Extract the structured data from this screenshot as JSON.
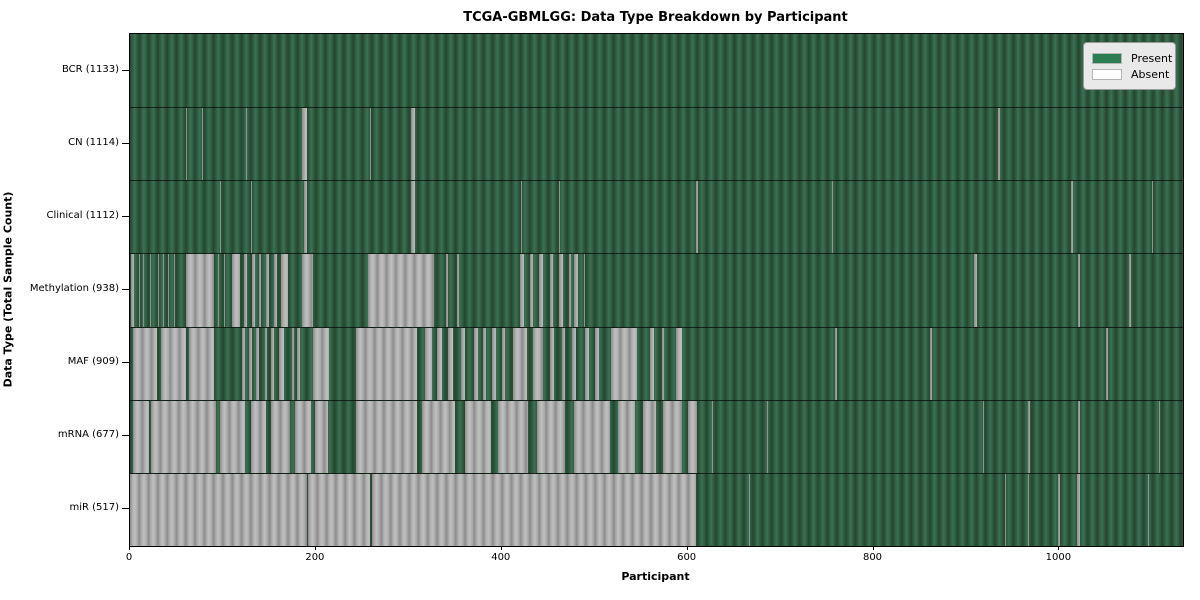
{
  "chart_data": {
    "type": "heatmap",
    "title": "TCGA-GBMLGG: Data Type Breakdown by Participant",
    "xlabel": "Participant",
    "ylabel": "Data Type (Total Sample Count)",
    "x_max": 1133,
    "x_ticks": [
      0,
      200,
      400,
      600,
      800,
      1000
    ],
    "grid": false,
    "legend_position": "upper right",
    "legend": [
      {
        "label": "Present",
        "color": "#2e7d52"
      },
      {
        "label": "Absent",
        "color": "#ffffff"
      }
    ],
    "present_color": "#2e7d52",
    "absent_color": "#aaaaaa",
    "rows": [
      {
        "label": "BCR (1133)",
        "name": "BCR",
        "total_samples": 1133,
        "absent_intervals": []
      },
      {
        "label": "CN (1114)",
        "name": "CN",
        "total_samples": 1114,
        "absent_intervals": [
          [
            60,
            61
          ],
          [
            78,
            79
          ],
          [
            106,
            107
          ],
          [
            125,
            126
          ],
          [
            185,
            191
          ],
          [
            258,
            259
          ],
          [
            302,
            307
          ],
          [
            516,
            517
          ],
          [
            934,
            936
          ]
        ]
      },
      {
        "label": "Clinical (1112)",
        "name": "Clinical",
        "total_samples": 1112,
        "absent_intervals": [
          [
            97,
            98
          ],
          [
            130,
            131
          ],
          [
            187,
            191
          ],
          [
            302,
            307
          ],
          [
            421,
            422
          ],
          [
            462,
            463
          ],
          [
            516,
            517
          ],
          [
            609,
            611
          ],
          [
            755,
            756
          ],
          [
            1013,
            1015
          ],
          [
            1100,
            1101
          ]
        ]
      },
      {
        "label": "Methylation (938)",
        "name": "Methylation",
        "total_samples": 938,
        "absent_intervals": [
          [
            1,
            4
          ],
          [
            10,
            11
          ],
          [
            14,
            15
          ],
          [
            22,
            23
          ],
          [
            30,
            31
          ],
          [
            36,
            37
          ],
          [
            41,
            42
          ],
          [
            47,
            48
          ],
          [
            60,
            90
          ],
          [
            95,
            96
          ],
          [
            101,
            102
          ],
          [
            110,
            118
          ],
          [
            123,
            126
          ],
          [
            131,
            134
          ],
          [
            139,
            141
          ],
          [
            146,
            150
          ],
          [
            155,
            158
          ],
          [
            163,
            170
          ],
          [
            185,
            197
          ],
          [
            256,
            327
          ],
          [
            340,
            342
          ],
          [
            352,
            354
          ],
          [
            420,
            424
          ],
          [
            430,
            434
          ],
          [
            440,
            444
          ],
          [
            452,
            455
          ],
          [
            462,
            466
          ],
          [
            472,
            474
          ],
          [
            478,
            482
          ],
          [
            488,
            490
          ],
          [
            908,
            911
          ],
          [
            1020,
            1022
          ],
          [
            1075,
            1077
          ]
        ]
      },
      {
        "label": "MAF (909)",
        "name": "MAF",
        "total_samples": 909,
        "absent_intervals": [
          [
            3,
            29
          ],
          [
            33,
            60
          ],
          [
            64,
            90
          ],
          [
            120,
            124
          ],
          [
            128,
            131
          ],
          [
            136,
            139
          ],
          [
            145,
            147
          ],
          [
            152,
            155
          ],
          [
            160,
            166
          ],
          [
            174,
            176
          ],
          [
            180,
            183
          ],
          [
            197,
            214
          ],
          [
            243,
            309
          ],
          [
            317,
            325
          ],
          [
            330,
            336
          ],
          [
            342,
            348
          ],
          [
            356,
            360
          ],
          [
            370,
            374
          ],
          [
            380,
            383
          ],
          [
            390,
            394
          ],
          [
            400,
            404
          ],
          [
            412,
            427
          ],
          [
            434,
            444
          ],
          [
            452,
            456
          ],
          [
            465,
            468
          ],
          [
            476,
            480
          ],
          [
            490,
            494
          ],
          [
            500,
            505
          ],
          [
            518,
            545
          ],
          [
            560,
            564
          ],
          [
            572,
            575
          ],
          [
            588,
            594
          ],
          [
            759,
            761
          ],
          [
            861,
            863
          ],
          [
            1050,
            1052
          ]
        ]
      },
      {
        "label": "mRNA (677)",
        "name": "mRNA",
        "total_samples": 677,
        "absent_intervals": [
          [
            3,
            20
          ],
          [
            23,
            92
          ],
          [
            97,
            124
          ],
          [
            130,
            146
          ],
          [
            152,
            172
          ],
          [
            178,
            195
          ],
          [
            199,
            213
          ],
          [
            243,
            309
          ],
          [
            314,
            350
          ],
          [
            360,
            388
          ],
          [
            396,
            428
          ],
          [
            438,
            468
          ],
          [
            478,
            516
          ],
          [
            525,
            543
          ],
          [
            552,
            566
          ],
          [
            574,
            594
          ],
          [
            600,
            610
          ],
          [
            626,
            627
          ],
          [
            630,
            631
          ],
          [
            685,
            686
          ],
          [
            918,
            919
          ],
          [
            966,
            968
          ],
          [
            1020,
            1022
          ],
          [
            1107,
            1108
          ]
        ]
      },
      {
        "label": "miR (517)",
        "name": "miR",
        "total_samples": 517,
        "absent_intervals": [
          [
            0,
            190
          ],
          [
            192,
            258
          ],
          [
            260,
            609
          ],
          [
            666,
            667
          ],
          [
            715,
            716
          ],
          [
            941,
            943
          ],
          [
            966,
            967
          ],
          [
            999,
            1001
          ],
          [
            1019,
            1022
          ],
          [
            1095,
            1096
          ]
        ]
      }
    ]
  }
}
